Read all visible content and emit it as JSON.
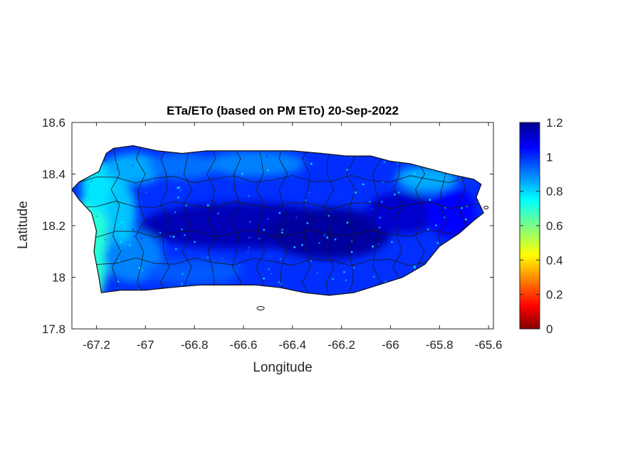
{
  "figure": {
    "title": "ETa/ETo (based on PM ETo) 20-Sep-2022",
    "xlabel": "Longitude",
    "ylabel": "Latitude"
  },
  "chart_data": {
    "type": "heatmap",
    "title": "ETa/ETo (based on PM ETo) 20-Sep-2022",
    "xlabel": "Longitude",
    "ylabel": "Latitude",
    "xlim": [
      -67.3,
      -65.58
    ],
    "ylim": [
      17.8,
      18.6
    ],
    "x_ticks": [
      -67.2,
      -67,
      -66.8,
      -66.6,
      -66.4,
      -66.2,
      -66,
      -65.8,
      -65.6
    ],
    "x_tick_labels": [
      "-67.2",
      "-67",
      "-66.8",
      "-66.6",
      "-66.4",
      "-66.2",
      "-66",
      "-65.8",
      "-65.6"
    ],
    "y_ticks": [
      17.8,
      18,
      18.2,
      18.4,
      18.6
    ],
    "y_tick_labels": [
      "17.8",
      "18",
      "18.2",
      "18.4",
      "18.6"
    ],
    "grid": false,
    "colorbar": {
      "range": [
        0,
        1.2
      ],
      "ticks": [
        0,
        0.2,
        0.4,
        0.6,
        0.8,
        1,
        1.2
      ],
      "tick_labels": [
        "0",
        "0.2",
        "0.4",
        "0.6",
        "0.8",
        "1",
        "1.2"
      ],
      "colormap": "jet",
      "placement": "right"
    },
    "region_values": {
      "west_coast": 0.7,
      "northwest": 0.85,
      "north_coast": 0.9,
      "central_interior": 1.15,
      "southwest": 0.9,
      "south_coast": 1.0,
      "east": 1.05
    },
    "colors": {
      "low": "#800000",
      "mid_low": "#ff0000",
      "mid": "#ffff00",
      "mid_high": "#00ffff",
      "high": "#0000ff",
      "max": "#00008f"
    }
  }
}
